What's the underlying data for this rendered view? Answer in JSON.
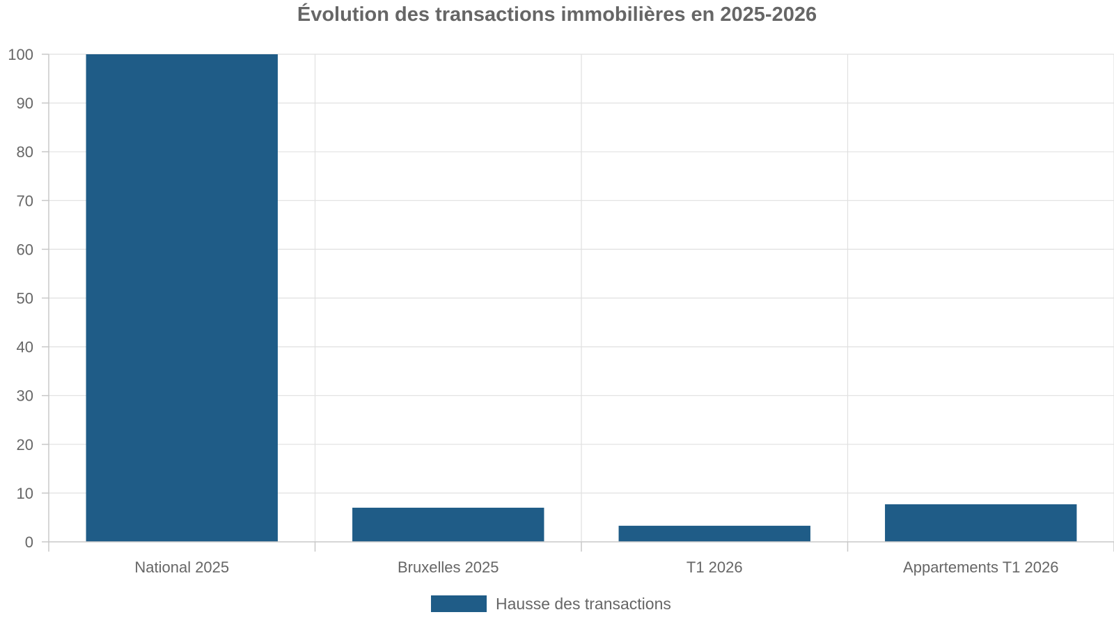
{
  "chart_data": {
    "type": "bar",
    "title": "Évolution des transactions immobilières en 2025-2026",
    "xlabel": "",
    "ylabel": "",
    "categories": [
      "National 2025",
      "Bruxelles 2025",
      "T1 2026",
      "Appartements T1 2026"
    ],
    "series": [
      {
        "name": "Hausse des transactions",
        "values": [
          100,
          7,
          3.3,
          7.7
        ],
        "color": "#1f5c87"
      }
    ],
    "ylim": [
      0,
      100
    ],
    "yticks": [
      "0",
      "10",
      "20",
      "30",
      "40",
      "50",
      "60",
      "70",
      "80",
      "90",
      "100"
    ],
    "grid": true,
    "legend": "bottom"
  }
}
